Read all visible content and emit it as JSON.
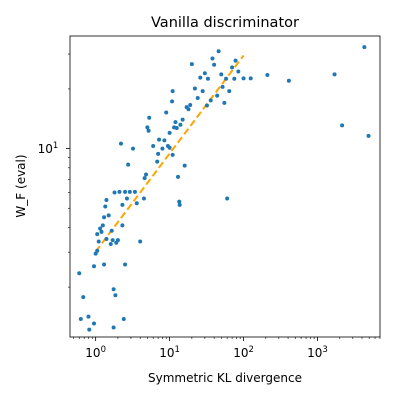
{
  "chart_data": {
    "type": "scatter",
    "title": "Vanilla discriminator",
    "xlabel": "Symmetric KL divergence",
    "ylabel": "W_F (eval)",
    "xscale": "log",
    "yscale": "log",
    "xlim": [
      0.45,
      7000
    ],
    "ylim": [
      1.12,
      37
    ],
    "grid": false,
    "x_ticks": [
      {
        "value": 1,
        "base": "10",
        "exp": "0"
      },
      {
        "value": 10,
        "base": "10",
        "exp": "1"
      },
      {
        "value": 100,
        "base": "10",
        "exp": "2"
      },
      {
        "value": 1000,
        "base": "10",
        "exp": "3"
      }
    ],
    "y_ticks": [
      {
        "value": 10,
        "base": "10",
        "exp": "1"
      }
    ],
    "colors": {
      "points": "#1f77b4",
      "fit": "#ffa500"
    },
    "fit_line": {
      "style": "dashed",
      "x": [
        1,
        100
      ],
      "y": [
        3.02,
        29.5
      ]
    },
    "points": [
      {
        "x": 0.6,
        "y": 2.35
      },
      {
        "x": 0.63,
        "y": 1.38
      },
      {
        "x": 0.68,
        "y": 1.78
      },
      {
        "x": 0.8,
        "y": 1.42
      },
      {
        "x": 0.82,
        "y": 1.22
      },
      {
        "x": 0.95,
        "y": 1.31
      },
      {
        "x": 0.95,
        "y": 2.55
      },
      {
        "x": 1.0,
        "y": 2.95
      },
      {
        "x": 1.05,
        "y": 3.05
      },
      {
        "x": 1.05,
        "y": 3.7
      },
      {
        "x": 1.1,
        "y": 3.4
      },
      {
        "x": 1.15,
        "y": 3.95
      },
      {
        "x": 1.2,
        "y": 3.8
      },
      {
        "x": 1.25,
        "y": 4.1
      },
      {
        "x": 1.3,
        "y": 2.6
      },
      {
        "x": 1.3,
        "y": 4.5
      },
      {
        "x": 1.35,
        "y": 5.1
      },
      {
        "x": 1.4,
        "y": 3.5
      },
      {
        "x": 1.4,
        "y": 5.5
      },
      {
        "x": 1.5,
        "y": 4.6
      },
      {
        "x": 1.6,
        "y": 3.3
      },
      {
        "x": 1.65,
        "y": 3.85
      },
      {
        "x": 1.7,
        "y": 3.45
      },
      {
        "x": 1.75,
        "y": 1.95
      },
      {
        "x": 1.75,
        "y": 1.25
      },
      {
        "x": 1.8,
        "y": 6.0
      },
      {
        "x": 1.85,
        "y": 1.82
      },
      {
        "x": 1.9,
        "y": 3.35
      },
      {
        "x": 2.0,
        "y": 3.45
      },
      {
        "x": 2.1,
        "y": 6.05
      },
      {
        "x": 2.2,
        "y": 10.6
      },
      {
        "x": 2.3,
        "y": 4.1
      },
      {
        "x": 2.3,
        "y": 5.2
      },
      {
        "x": 2.4,
        "y": 1.38
      },
      {
        "x": 2.5,
        "y": 2.6
      },
      {
        "x": 2.5,
        "y": 6.05
      },
      {
        "x": 2.65,
        "y": 5.6
      },
      {
        "x": 2.75,
        "y": 8.3
      },
      {
        "x": 2.9,
        "y": 6.05
      },
      {
        "x": 3.2,
        "y": 10.0
      },
      {
        "x": 3.4,
        "y": 6.05
      },
      {
        "x": 3.6,
        "y": 5.3
      },
      {
        "x": 4.0,
        "y": 3.4
      },
      {
        "x": 4.5,
        "y": 5.6
      },
      {
        "x": 4.6,
        "y": 7.1
      },
      {
        "x": 4.8,
        "y": 7.4
      },
      {
        "x": 5.0,
        "y": 12.8
      },
      {
        "x": 5.2,
        "y": 12.3
      },
      {
        "x": 5.3,
        "y": 14.3
      },
      {
        "x": 6.0,
        "y": 10.3
      },
      {
        "x": 6.8,
        "y": 8.6
      },
      {
        "x": 7.0,
        "y": 9.4
      },
      {
        "x": 7.2,
        "y": 11.1
      },
      {
        "x": 8.0,
        "y": 10.0
      },
      {
        "x": 8.5,
        "y": 11.0
      },
      {
        "x": 9.0,
        "y": 15.2
      },
      {
        "x": 9.5,
        "y": 10.3
      },
      {
        "x": 10.0,
        "y": 12.0
      },
      {
        "x": 10.0,
        "y": 10.1
      },
      {
        "x": 10.8,
        "y": 17.3
      },
      {
        "x": 11.0,
        "y": 19.5
      },
      {
        "x": 11.0,
        "y": 9.3
      },
      {
        "x": 11.5,
        "y": 12.8
      },
      {
        "x": 12.0,
        "y": 13.6
      },
      {
        "x": 12.5,
        "y": 12.7
      },
      {
        "x": 13.0,
        "y": 7.2
      },
      {
        "x": 13.5,
        "y": 5.4
      },
      {
        "x": 13.7,
        "y": 5.2
      },
      {
        "x": 14.0,
        "y": 13.2
      },
      {
        "x": 15.0,
        "y": 14.0
      },
      {
        "x": 16.0,
        "y": 8.2
      },
      {
        "x": 17.0,
        "y": 16.2
      },
      {
        "x": 18.0,
        "y": 15.8
      },
      {
        "x": 19.0,
        "y": 16.6
      },
      {
        "x": 20.0,
        "y": 26.7
      },
      {
        "x": 22.0,
        "y": 20.1
      },
      {
        "x": 24.0,
        "y": 18.0
      },
      {
        "x": 26.0,
        "y": 22.8
      },
      {
        "x": 28.0,
        "y": 19.5
      },
      {
        "x": 30.0,
        "y": 24.0
      },
      {
        "x": 32.0,
        "y": 16.5
      },
      {
        "x": 33.0,
        "y": 22.5
      },
      {
        "x": 36.0,
        "y": 17.5
      },
      {
        "x": 38.0,
        "y": 28.5
      },
      {
        "x": 40.0,
        "y": 26.5
      },
      {
        "x": 44.0,
        "y": 18.5
      },
      {
        "x": 46.0,
        "y": 31.0
      },
      {
        "x": 50.0,
        "y": 23.7
      },
      {
        "x": 52.0,
        "y": 20.5
      },
      {
        "x": 55.0,
        "y": 17.0
      },
      {
        "x": 58.0,
        "y": 22.5
      },
      {
        "x": 60.0,
        "y": 5.6
      },
      {
        "x": 64.0,
        "y": 19.5
      },
      {
        "x": 70.0,
        "y": 25.7
      },
      {
        "x": 75.0,
        "y": 22.5
      },
      {
        "x": 78.0,
        "y": 27.8
      },
      {
        "x": 85.0,
        "y": 24.5
      },
      {
        "x": 100.0,
        "y": 22.6
      },
      {
        "x": 125.0,
        "y": 22.6
      },
      {
        "x": 210.0,
        "y": 23.5
      },
      {
        "x": 410.0,
        "y": 22.0
      },
      {
        "x": 1700.0,
        "y": 23.7
      },
      {
        "x": 2150.0,
        "y": 13.1
      },
      {
        "x": 4300.0,
        "y": 32.5
      },
      {
        "x": 4900.0,
        "y": 11.6
      }
    ]
  }
}
